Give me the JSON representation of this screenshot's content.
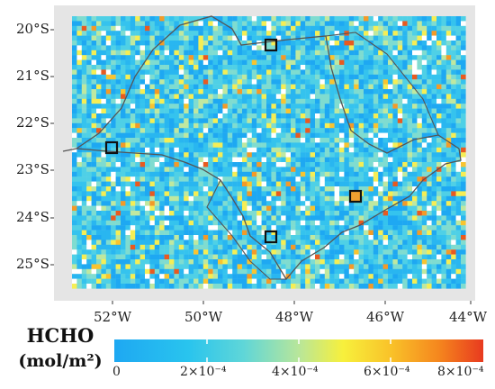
{
  "map": {
    "latitude_labels": [
      "20°S",
      "21°S",
      "22°S",
      "23°S",
      "24°S",
      "25°S"
    ],
    "longitude_labels": [
      "52°W",
      "50°W",
      "48°W",
      "46°W",
      "44°W"
    ],
    "panel_bg_color": "#e5e5e5",
    "boundary_color": "#555555",
    "marker_color": "#111111",
    "site_count": 4
  },
  "legend": {
    "title_line1": "HCHO",
    "title_line2": "(mol/m²)",
    "ticks": [
      "0",
      "2×10⁻⁴",
      "4×10⁻⁴",
      "6×10⁻⁴",
      "8×10⁻⁴"
    ],
    "colors": [
      "#1ea8f2",
      "#29c4ee",
      "#5fd6d8",
      "#b8e69a",
      "#f7f03c",
      "#f9c229",
      "#f5861e",
      "#e83a1f"
    ]
  }
}
